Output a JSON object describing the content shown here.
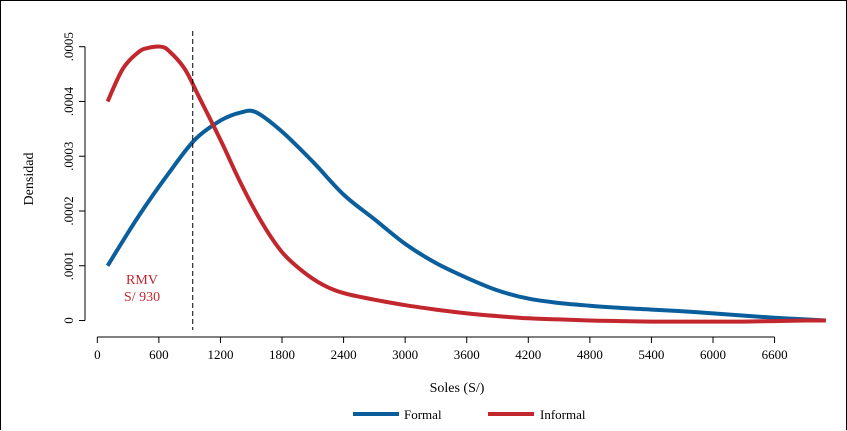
{
  "chart_data": {
    "type": "line",
    "xlabel": "Soles (S/)",
    "ylabel": "Densidad",
    "xlim": [
      -120,
      7150
    ],
    "ylim": [
      -1e-05,
      0.000525
    ],
    "x_ticks": [
      0,
      600,
      1200,
      1800,
      2400,
      3000,
      3600,
      4200,
      4800,
      5400,
      6000,
      6600
    ],
    "x_tick_labels": [
      "0",
      "600",
      "1200",
      "1800",
      "2400",
      "3000",
      "3600",
      "4200",
      "4800",
      "5400",
      "6000",
      "6600"
    ],
    "y_ticks": [
      0,
      0.0001,
      0.0002,
      0.0003,
      0.0004,
      0.0005
    ],
    "y_tick_labels": [
      "0",
      ".0001",
      ".0002",
      ".0003",
      ".0004",
      ".0005"
    ],
    "grid": false,
    "legend_position": "bottom",
    "series": [
      {
        "name": "Formal",
        "color": "#0b5e9c",
        "x": [
          100,
          400,
          700,
          950,
          1200,
          1400,
          1550,
          1800,
          2100,
          2400,
          2700,
          3000,
          3300,
          3600,
          3900,
          4200,
          4500,
          4800,
          5100,
          5400,
          5700,
          6000,
          6300,
          6600,
          6900,
          7100
        ],
        "y": [
          0.0001,
          0.00019,
          0.00027,
          0.00033,
          0.000365,
          0.00038,
          0.00038,
          0.000345,
          0.00029,
          0.00023,
          0.000185,
          0.00014,
          0.000105,
          7.8e-05,
          5.5e-05,
          4e-05,
          3.2e-05,
          2.7e-05,
          2.3e-05,
          2e-05,
          1.7e-05,
          1.3e-05,
          9e-06,
          5e-06,
          2e-06,
          0.0
        ]
      },
      {
        "name": "Informal",
        "color": "#c1272d",
        "x": [
          100,
          250,
          400,
          500,
          620,
          700,
          850,
          1000,
          1200,
          1400,
          1600,
          1800,
          2000,
          2200,
          2400,
          2700,
          3000,
          3300,
          3600,
          3900,
          4200,
          4500,
          4800,
          5100,
          5400,
          5700,
          6000,
          6300,
          6600,
          6900,
          7100
        ],
        "y": [
          0.0004,
          0.00046,
          0.00049,
          0.000498,
          0.0005,
          0.000492,
          0.00046,
          0.000405,
          0.00033,
          0.00025,
          0.00018,
          0.000125,
          9e-05,
          6.5e-05,
          5e-05,
          3.8e-05,
          2.8e-05,
          2e-05,
          1.3e-05,
          8e-06,
          4e-06,
          2e-06,
          0.0,
          -1e-06,
          -2e-06,
          -2e-06,
          -2e-06,
          -2e-06,
          -1e-06,
          0.0,
          0.0
        ]
      }
    ],
    "annotations": [
      {
        "type": "vline",
        "x": 930,
        "style": "dashed",
        "lines": [
          "RMV",
          "S/ 930"
        ],
        "color": "#c1272d"
      }
    ]
  }
}
